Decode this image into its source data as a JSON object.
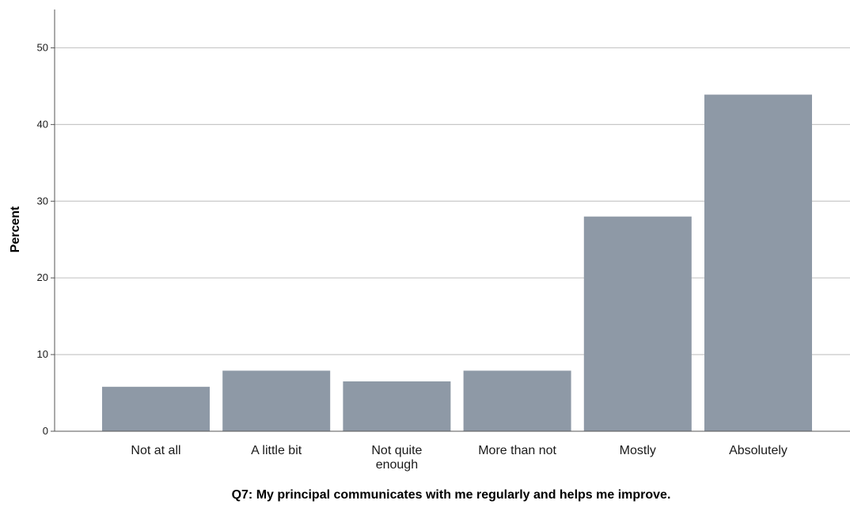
{
  "chart_data": {
    "type": "bar",
    "categories": [
      "Not at all",
      "A little bit",
      "Not quite enough",
      "More than not",
      "Mostly",
      "Absolutely"
    ],
    "category_lines": [
      [
        "Not at all"
      ],
      [
        "A little bit"
      ],
      [
        "Not quite",
        "enough"
      ],
      [
        "More than not"
      ],
      [
        "Mostly"
      ],
      [
        "Absolutely"
      ]
    ],
    "values": [
      5.8,
      7.9,
      6.5,
      7.9,
      28.0,
      43.9
    ],
    "xlabel": "Q7: My principal communicates with me regularly and helps me improve.",
    "ylabel": "Percent",
    "ylim": [
      0,
      55
    ],
    "yticks": [
      0,
      10,
      20,
      30,
      40,
      50
    ],
    "grid": true,
    "bar_color": "#8e99a6",
    "grid_color": "#c8c8c8",
    "axis_color": "#555555"
  }
}
